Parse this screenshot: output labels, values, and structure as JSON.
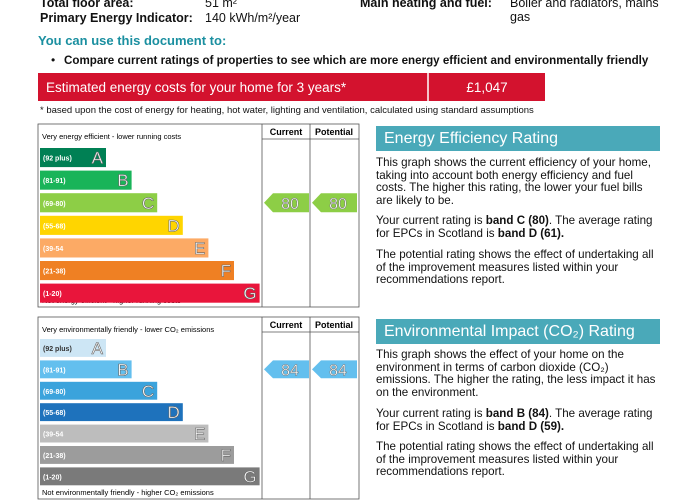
{
  "summary": {
    "rows": [
      {
        "label": "Total floor area:",
        "value": "51 m²"
      },
      {
        "label": "Primary Energy Indicator:",
        "value": "140 kWh/m²/year"
      }
    ],
    "heating": {
      "label": "Main heating and fuel:",
      "value": "Boiler and radiators, mains gas"
    }
  },
  "uses": {
    "heading": "You can use this document to:",
    "bullets": [
      "Compare current ratings of properties to see which are more energy efficient and environmentally friendly"
    ]
  },
  "costs": {
    "label": "Estimated energy costs for your home for 3 years*",
    "value": "£1,047",
    "footnote": "* based upon the cost of energy for heating, hot water, lighting and ventilation, calculated using standard assumptions"
  },
  "ratings": [
    {
      "top_label": "Very energy efficient - lower running costs",
      "bottom_label": "Not energy efficient - higher running costs",
      "current_header": "Current",
      "potential_header": "Potential",
      "bands": [
        {
          "range": "(92 plus)",
          "letter": "A"
        },
        {
          "range": "(81-91)",
          "letter": "B"
        },
        {
          "range": "(69-80)",
          "letter": "C"
        },
        {
          "range": "(55-68)",
          "letter": "D"
        },
        {
          "range": "(39-54",
          "letter": "E"
        },
        {
          "range": "(21-38)",
          "letter": "F"
        },
        {
          "range": "(1-20)",
          "letter": "G"
        }
      ],
      "current": "80",
      "potential": "80",
      "title": "Energy Efficiency Rating",
      "paragraphs": [
        [
          {
            "text": "This graph shows the current efficiency of your home, taking into account both energy efficiency and fuel costs. The higher this rating, the lower your fuel bills are likely to be."
          }
        ],
        [
          {
            "text": "Your current rating is "
          },
          {
            "text": "band C (80)",
            "bold": true
          },
          {
            "text": ". The average rating for EPCs in Scotland is "
          },
          {
            "text": "band D (61).",
            "bold": true
          }
        ],
        [
          {
            "text": "The potential rating shows the effect of undertaking all of the improvement measures listed within your recommendations report."
          }
        ]
      ]
    },
    {
      "top_label": "Very environmentally friendly - lower CO₂ emissions",
      "bottom_label": "Not environmentally friendly - higher CO₂ emissions",
      "current_header": "Current",
      "potential_header": "Potential",
      "bands": [
        {
          "range": "(92 plus)",
          "letter": "A"
        },
        {
          "range": "(81-91)",
          "letter": "B"
        },
        {
          "range": "(69-80)",
          "letter": "C"
        },
        {
          "range": "(55-68)",
          "letter": "D"
        },
        {
          "range": "(39-54",
          "letter": "E"
        },
        {
          "range": "(21-38)",
          "letter": "F"
        },
        {
          "range": "(1-20)",
          "letter": "G"
        }
      ],
      "current": "84",
      "potential": "84",
      "title": "Environmental Impact (CO₂) Rating",
      "paragraphs": [
        [
          {
            "text": "This graph shows the effect of your home on the environment in terms of carbon dioxide (CO₂) emissions. The higher the rating, the less impact it has on the environment."
          }
        ],
        [
          {
            "text": "Your current rating is "
          },
          {
            "text": "band B (84)",
            "bold": true
          },
          {
            "text": ". The average rating for EPCs in Scotland is "
          },
          {
            "text": "band D (59).",
            "bold": true
          }
        ],
        [
          {
            "text": "The potential rating shows the effect of undertaking all of the improvement measures listed within your recommendations report."
          }
        ]
      ]
    }
  ]
}
